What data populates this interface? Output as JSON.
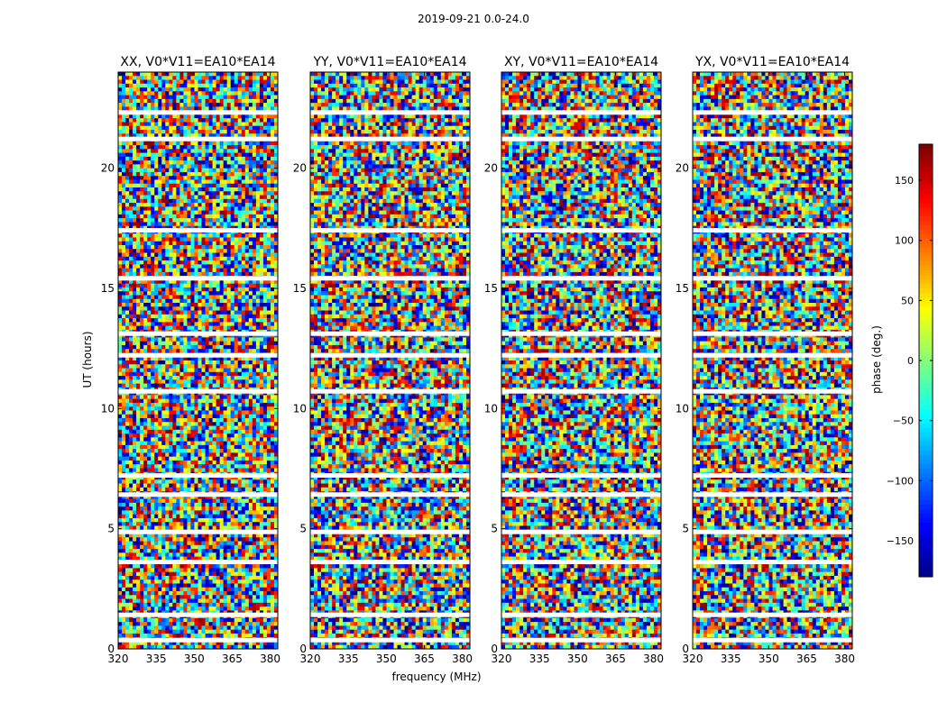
{
  "figure_title": "2019-09-21 0.0-24.0",
  "x_axis_label": "frequency (MHz)",
  "y_axis_label": "UT (hours)",
  "colorbar": {
    "label": "phase (deg.)",
    "ticks": [
      -150,
      -100,
      -50,
      0,
      50,
      100,
      150
    ],
    "tick_labels": [
      "−150",
      "−100",
      "−50",
      "0",
      "50",
      "100",
      "150"
    ],
    "range": [
      -180,
      180
    ],
    "colormap": "jet"
  },
  "chart_data": [
    {
      "type": "heatmap",
      "title": "XX, V0*V11=EA10*EA14",
      "xlabel": "",
      "ylabel": "UT (hours)",
      "xlim": [
        320,
        383
      ],
      "ylim": [
        0,
        24
      ],
      "xticks": [
        320,
        335,
        350,
        365,
        380
      ],
      "yticks": [
        0,
        5,
        10,
        15,
        20
      ],
      "value": "phase (deg.)",
      "flagged_ut_hours": [
        0.35,
        1.4,
        3.6,
        4.85,
        6.4,
        7.2,
        10.7,
        12.2,
        13.1,
        15.4,
        17.4,
        21.2,
        22.3
      ]
    },
    {
      "type": "heatmap",
      "title": "YY, V0*V11=EA10*EA14",
      "xlabel": "",
      "ylabel": "",
      "xlim": [
        320,
        383
      ],
      "ylim": [
        0,
        24
      ],
      "xticks": [
        320,
        335,
        350,
        365,
        380
      ],
      "yticks": [
        0,
        5,
        10,
        15,
        20
      ],
      "value": "phase (deg.)",
      "flagged_ut_hours": [
        0.35,
        1.4,
        3.6,
        4.85,
        6.4,
        7.2,
        10.7,
        12.2,
        13.1,
        15.4,
        17.4,
        21.2,
        22.3
      ]
    },
    {
      "type": "heatmap",
      "title": "XY, V0*V11=EA10*EA14",
      "xlabel": "",
      "ylabel": "",
      "xlim": [
        320,
        383
      ],
      "ylim": [
        0,
        24
      ],
      "xticks": [
        320,
        335,
        350,
        365,
        380
      ],
      "yticks": [
        0,
        5,
        10,
        15,
        20
      ],
      "value": "phase (deg.)",
      "flagged_ut_hours": [
        0.35,
        1.4,
        3.6,
        4.85,
        6.4,
        7.2,
        10.7,
        12.2,
        13.1,
        15.4,
        17.4,
        21.2,
        22.3
      ]
    },
    {
      "type": "heatmap",
      "title": "YX, V0*V11=EA10*EA14",
      "xlabel": "",
      "ylabel": "",
      "xlim": [
        320,
        383
      ],
      "ylim": [
        0,
        24
      ],
      "xticks": [
        320,
        335,
        350,
        365,
        380
      ],
      "yticks": [
        0,
        5,
        10,
        15,
        20
      ],
      "value": "phase (deg.)",
      "flagged_ut_hours": [
        0.35,
        1.4,
        3.6,
        4.85,
        6.4,
        7.2,
        10.7,
        12.2,
        13.1,
        15.4,
        17.4,
        21.2,
        22.3
      ]
    }
  ]
}
